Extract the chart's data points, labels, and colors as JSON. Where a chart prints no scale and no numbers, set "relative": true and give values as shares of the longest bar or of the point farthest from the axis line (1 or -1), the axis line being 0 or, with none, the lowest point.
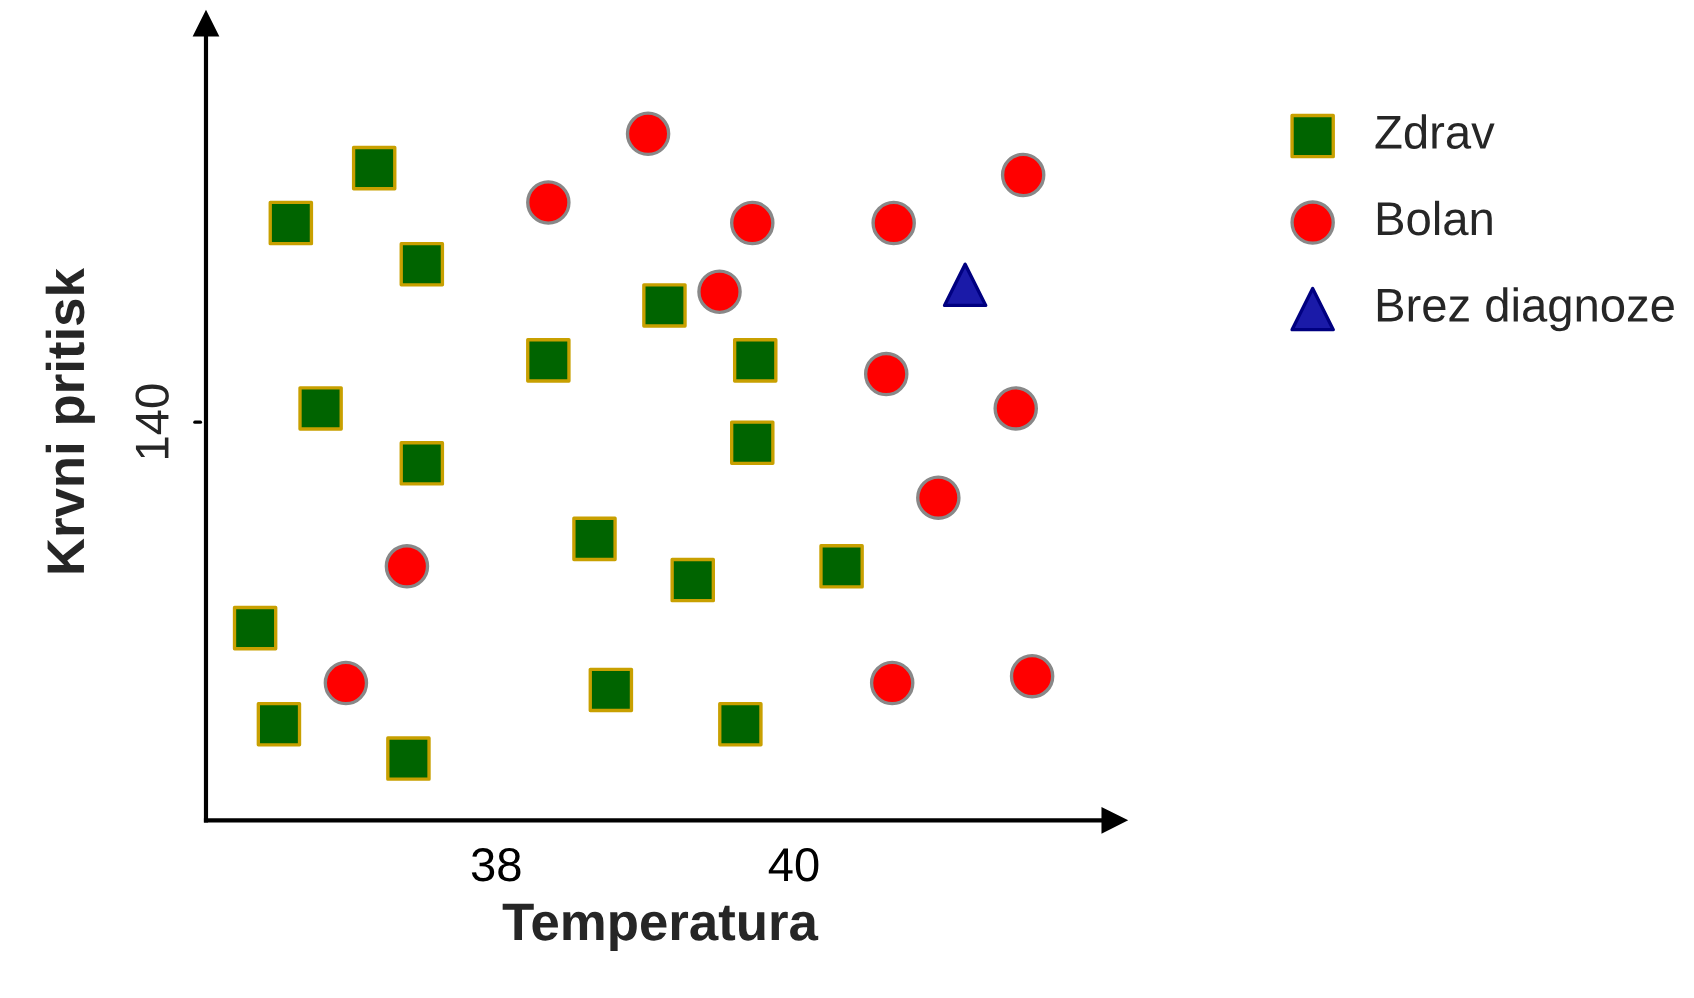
{
  "chart_data": {
    "type": "scatter",
    "xlabel": "Temperatura",
    "ylabel": "Krvni pritisk",
    "relative": true,
    "xlim": [
      36.05,
      42.15
    ],
    "xticks": [
      38,
      40
    ],
    "annotations": [
      "140"
    ],
    "grid": false,
    "legend": "top right",
    "series": [
      {
        "name": "Zdrav",
        "color": "#006400",
        "marker": "square",
        "x": [
          37.18,
          36.62,
          37.5,
          38.35,
          39.13,
          39.74,
          36.82,
          39.72,
          37.5,
          38.66,
          39.32,
          40.32,
          36.38,
          38.77,
          36.54,
          39.64,
          37.41
        ],
        "values": [
          0.95,
          0.87,
          0.81,
          0.67,
          0.75,
          0.67,
          0.6,
          0.55,
          0.52,
          0.41,
          0.35,
          0.37,
          0.28,
          0.19,
          0.14,
          0.14,
          0.09
        ]
      },
      {
        "name": "Bolan",
        "color": "#ff0000",
        "marker": "circle",
        "x": [
          39.02,
          38.35,
          39.72,
          40.67,
          41.54,
          39.5,
          40.62,
          41.49,
          40.97,
          37.4,
          36.99,
          40.66,
          41.6
        ],
        "values": [
          1.0,
          0.9,
          0.87,
          0.87,
          0.94,
          0.77,
          0.65,
          0.6,
          0.47,
          0.37,
          0.2,
          0.2,
          0.21
        ]
      },
      {
        "name": "Brez diagnoze",
        "color": "#1a1aa8",
        "marker": "triangle",
        "x": [
          41.15
        ],
        "values": [
          0.78
        ]
      }
    ]
  }
}
